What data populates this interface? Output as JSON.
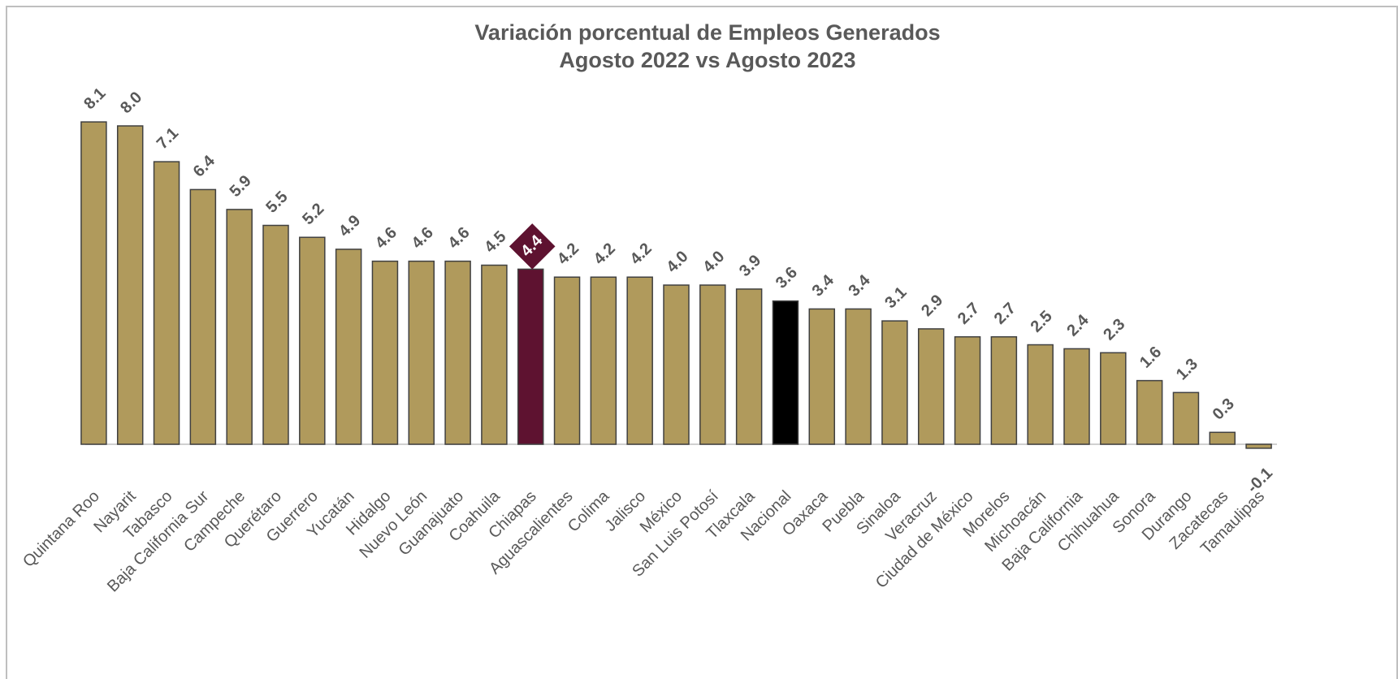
{
  "chart_data": {
    "type": "bar",
    "title": "Variación porcentual de Empleos Generados",
    "subtitle": "Agosto 2022 vs Agosto 2023",
    "categories": [
      "Quintana Roo",
      "Nayarit",
      "Tabasco",
      "Baja California Sur",
      "Campeche",
      "Querétaro",
      "Guerrero",
      "Yucatán",
      "Hidalgo",
      "Nuevo León",
      "Guanajuato",
      "Coahuila",
      "Chiapas",
      "Aguascalientes",
      "Colima",
      "Jalisco",
      "México",
      "San Luis Potosí",
      "Tlaxcala",
      "Nacional",
      "Oaxaca",
      "Puebla",
      "Sinaloa",
      "Veracruz",
      "Ciudad de México",
      "Morelos",
      "Michoacán",
      "Baja California",
      "Chihuahua",
      "Sonora",
      "Durango",
      "Zacatecas",
      "Tamaulipas"
    ],
    "values": [
      8.1,
      8.0,
      7.1,
      6.4,
      5.9,
      5.5,
      5.2,
      4.9,
      4.6,
      4.6,
      4.6,
      4.5,
      4.4,
      4.2,
      4.2,
      4.2,
      4.0,
      4.0,
      3.9,
      3.6,
      3.4,
      3.4,
      3.1,
      2.9,
      2.7,
      2.7,
      2.5,
      2.4,
      2.3,
      1.6,
      1.3,
      0.3,
      -0.1
    ],
    "value_labels": [
      "8.1",
      "8.0",
      "7.1",
      "6.4",
      "5.9",
      "5.5",
      "5.2",
      "4.9",
      "4.6",
      "4.6",
      "4.6",
      "4.5",
      "4.4",
      "4.2",
      "4.2",
      "4.2",
      "4.0",
      "4.0",
      "3.9",
      "3.6",
      "3.4",
      "3.4",
      "3.1",
      "2.9",
      "2.7",
      "2.7",
      "2.5",
      "2.4",
      "2.3",
      "1.6",
      "1.3",
      "0.3",
      "-0.1"
    ],
    "color": "#b09a5c",
    "colors": [
      "#b09a5c",
      "#b09a5c",
      "#b09a5c",
      "#b09a5c",
      "#b09a5c",
      "#b09a5c",
      "#b09a5c",
      "#b09a5c",
      "#b09a5c",
      "#b09a5c",
      "#b09a5c",
      "#b09a5c",
      "#5e1230",
      "#b09a5c",
      "#b09a5c",
      "#b09a5c",
      "#b09a5c",
      "#b09a5c",
      "#b09a5c",
      "#000000",
      "#b09a5c",
      "#b09a5c",
      "#b09a5c",
      "#b09a5c",
      "#b09a5c",
      "#b09a5c",
      "#b09a5c",
      "#b09a5c",
      "#b09a5c",
      "#b09a5c",
      "#b09a5c",
      "#b09a5c",
      "#b09a5c"
    ],
    "highlight": "Chiapas",
    "ylim": [
      -0.5,
      9
    ],
    "grid": false
  }
}
